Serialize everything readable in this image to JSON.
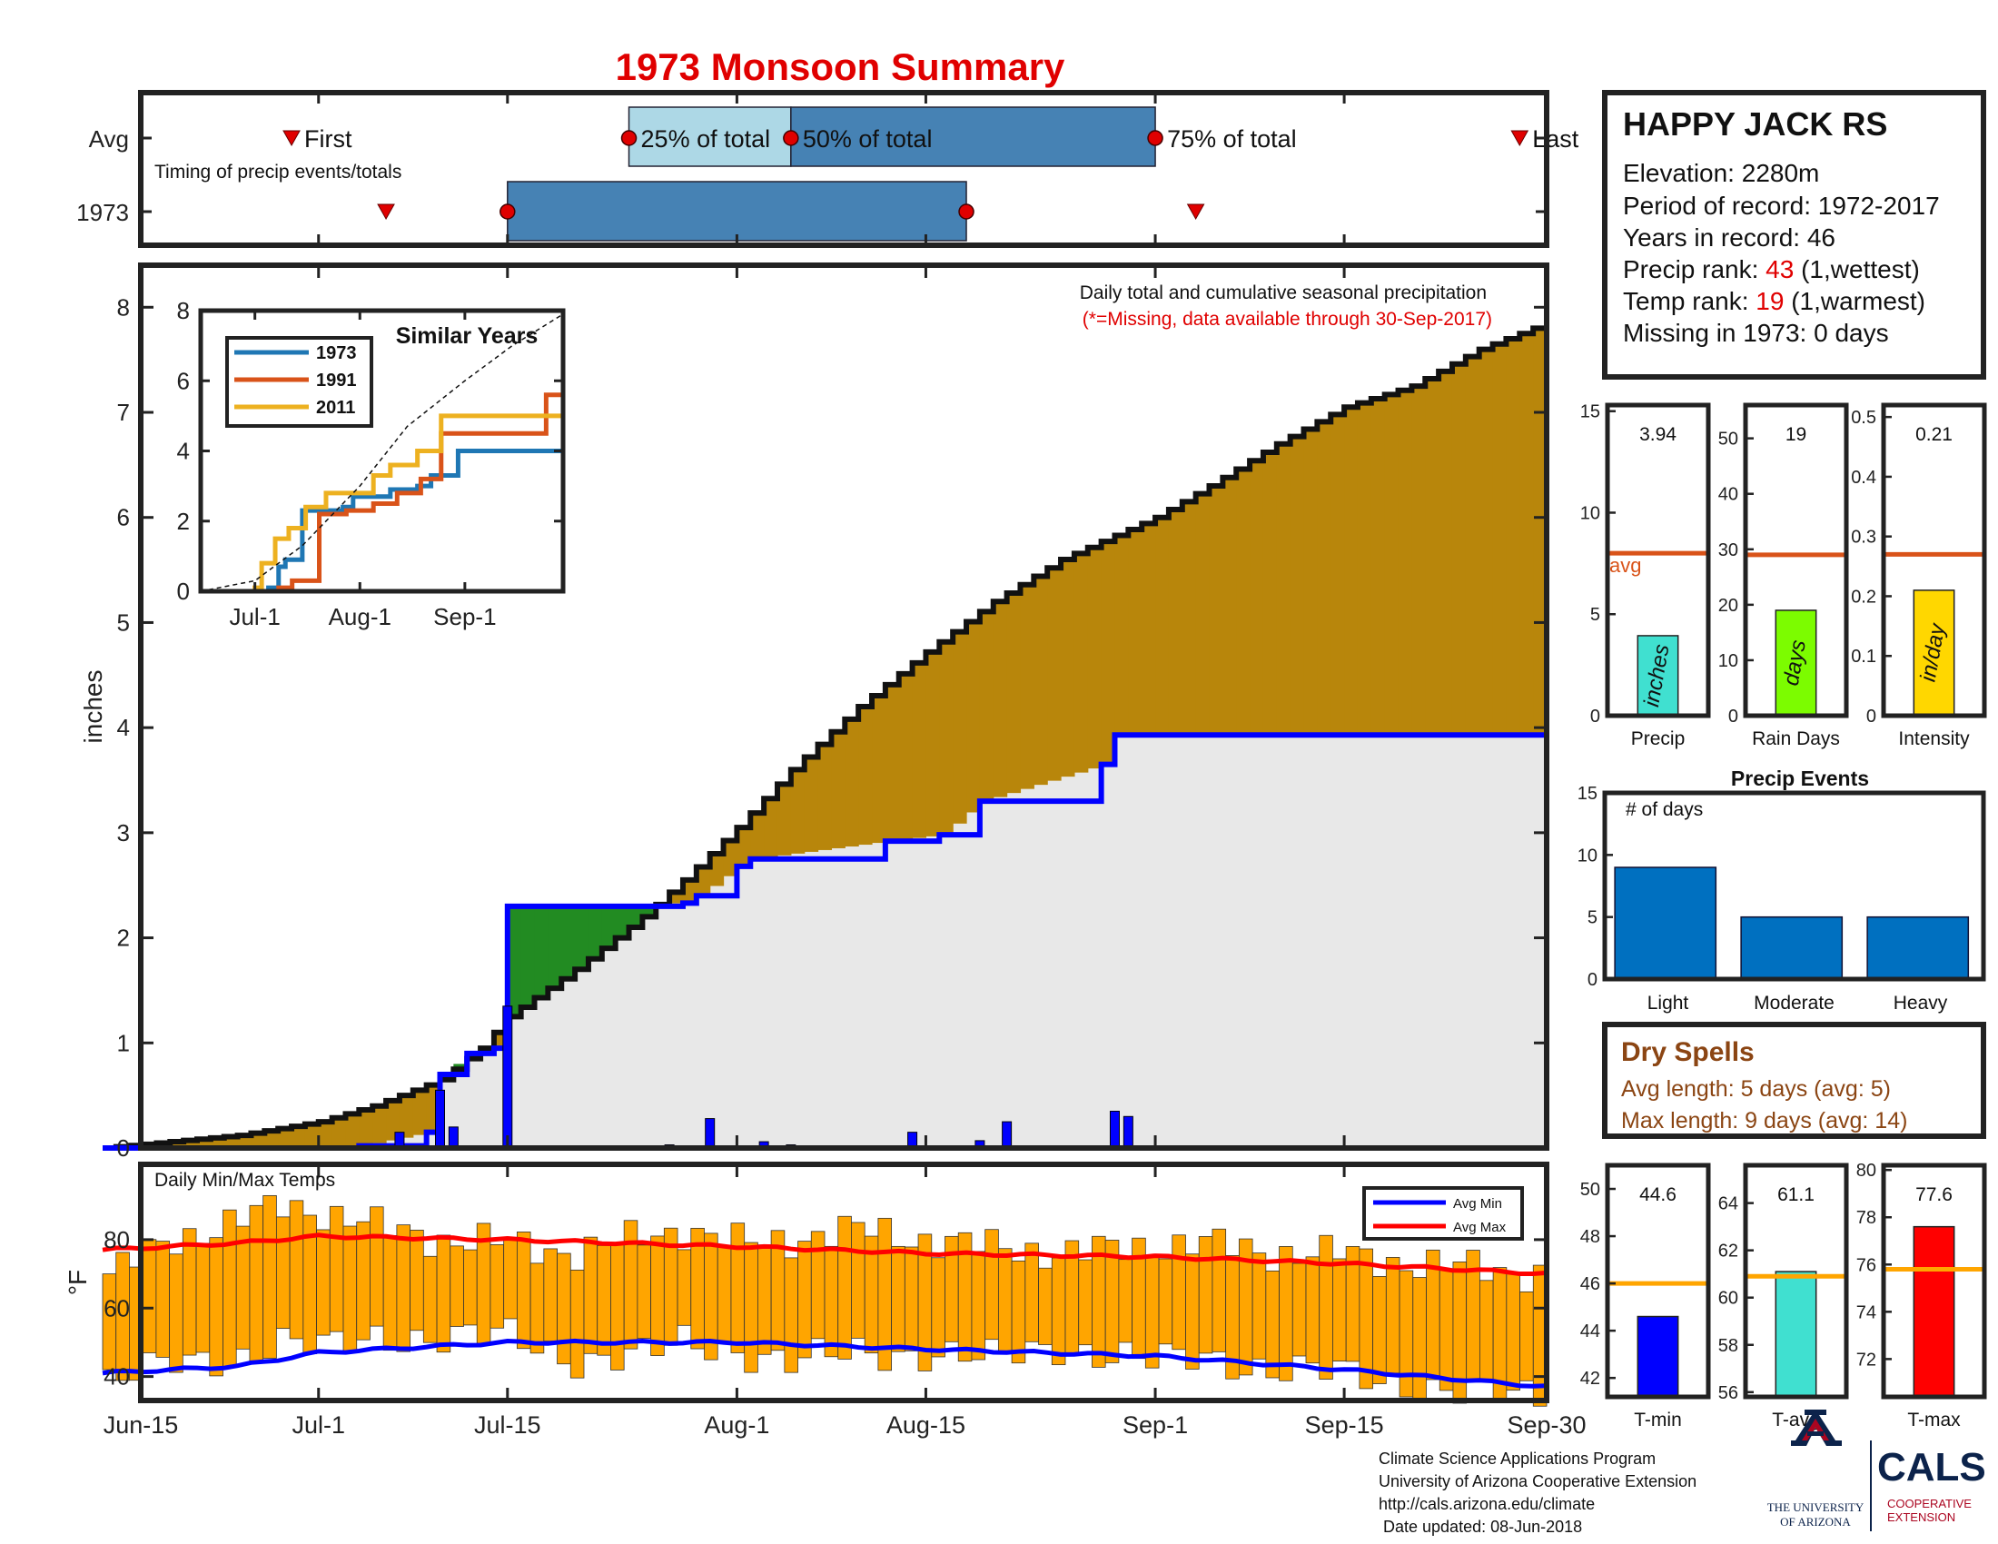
{
  "title": "1973 Monsoon Summary",
  "timing": {
    "avg_label": "Avg",
    "year_label": "1973",
    "subtitle": "Timing of precip events/totals",
    "first_label": "First",
    "last_label": "Last",
    "p25_label": "25% of total",
    "p50_label": "50% of total",
    "p75_label": "75% of total",
    "avg_dates": {
      "first": "2000-06-29",
      "p25": "2000-07-24",
      "p50": "2000-08-05",
      "p75": "2000-09-01",
      "last": "2000-09-28"
    },
    "year_dates": {
      "first": "2000-07-06",
      "p25": "2000-07-15",
      "p75": "2000-08-18",
      "last": "2000-09-04"
    }
  },
  "station": {
    "name": "HAPPY JACK RS",
    "elevation": "Elevation: 2280m",
    "period": "Period of record: 1972-2017",
    "years": "Years in record: 46",
    "precip_rank_prefix": "Precip rank: ",
    "precip_rank_value": "43",
    "precip_rank_suffix": " (1,wettest)",
    "temp_rank_prefix": "Temp rank: ",
    "temp_rank_value": "19",
    "temp_rank_suffix": " (1,warmest)",
    "missing": "Missing in 1973: 0 days"
  },
  "precip_panel": {
    "note": "Daily total and cumulative seasonal precipitation",
    "missing_note": "(*=Missing, data available through 30-Sep-2017)",
    "ylabel": "inches",
    "colors": {
      "climo": "#B8860B",
      "deficit": "#E8E8E8",
      "surplus": "#228B22",
      "observed": "#0000FF"
    }
  },
  "similar_years": {
    "title": "Similar Years",
    "legend": [
      {
        "label": "1973",
        "color": "#1F77B4"
      },
      {
        "label": "1991",
        "color": "#D95319"
      },
      {
        "label": "2011",
        "color": "#EDB120"
      }
    ],
    "xticks": [
      "Jul-1",
      "Aug-1",
      "Sep-1"
    ]
  },
  "temps": {
    "label": "Daily Min/Max Temps",
    "ylabel": "°F",
    "legend_min": "Avg Min",
    "legend_max": "Avg Max"
  },
  "xaxis": {
    "ticks": [
      "Jun-15",
      "Jul-1",
      "Jul-15",
      "Aug-1",
      "Aug-15",
      "Sep-1",
      "Sep-15",
      "Sep-30"
    ]
  },
  "summary_bars": {
    "avg_label": "avg",
    "precip": {
      "label": "Precip",
      "value": 3.94,
      "display": "3.94",
      "avg": 8.0,
      "unit": "inches",
      "color": "#40E0D0",
      "ylim": [
        0,
        15.3
      ],
      "ticks": [
        "0",
        "5",
        "10",
        "15"
      ]
    },
    "rain_days": {
      "label": "Rain Days",
      "value": 19,
      "display": "19",
      "avg": 29,
      "unit": "days",
      "color": "#7CFC00",
      "ylim": [
        0,
        56
      ],
      "ticks": [
        "0",
        "10",
        "20",
        "30",
        "40",
        "50"
      ]
    },
    "intensity": {
      "label": "Intensity",
      "value": 0.21,
      "display": "0.21",
      "avg": 0.27,
      "unit": "in/day",
      "color": "#FFD700",
      "ylim": [
        0,
        0.52
      ],
      "ticks": [
        "0",
        "0.1",
        "0.2",
        "0.3",
        "0.4",
        "0.5"
      ]
    }
  },
  "precip_events": {
    "title": "Precip Events",
    "ylabel": "# of days",
    "categories": [
      "Light",
      "Moderate",
      "Heavy"
    ],
    "values": [
      9,
      5,
      5
    ],
    "ylim": [
      0,
      15
    ],
    "color": "#0070C0"
  },
  "dry_spells": {
    "title": "Dry Spells",
    "avg_length": "Avg length: 5 days (avg: 5)",
    "max_length": "Max length: 9 days (avg: 14)"
  },
  "temp_bars": {
    "tmin": {
      "label": "T-min",
      "value": 44.6,
      "display": "44.6",
      "avg": 46.0,
      "color": "#0000FF",
      "ylim": [
        41.2,
        51
      ],
      "ticks": [
        "42",
        "44",
        "46",
        "48",
        "50"
      ]
    },
    "tavg": {
      "label": "T-avg",
      "value": 61.1,
      "display": "61.1",
      "avg": 60.9,
      "color": "#40E0D0",
      "ylim": [
        55.8,
        65.6
      ],
      "ticks": [
        "56",
        "58",
        "60",
        "62",
        "64"
      ]
    },
    "tmax": {
      "label": "T-max",
      "value": 77.6,
      "display": "77.6",
      "avg": 75.8,
      "color": "#FF0000",
      "ylim": [
        70.4,
        80.2
      ],
      "ticks": [
        "72",
        "74",
        "76",
        "78",
        "80"
      ]
    }
  },
  "footer": {
    "line1": "Climate Science Applications Program",
    "line2": "University of Arizona Cooperative Extension",
    "line3": "http://cals.arizona.edu/climate",
    "line4": " Date updated: 08-Jun-2018",
    "ua_line1": "THE UNIVERSITY",
    "ua_line2": "OF ARIZONA",
    "cals": "CALS",
    "cals_sub1": "COOPERATIVE",
    "cals_sub2": "EXTENSION"
  },
  "chart_data": [
    {
      "type": "area",
      "title": "Daily total and cumulative seasonal precipitation",
      "ylabel": "inches",
      "x_range": [
        "2000-06-15",
        "2000-09-30"
      ],
      "ylim": [
        0,
        8.4
      ],
      "yticks": [
        0,
        1,
        2,
        3,
        4,
        5,
        6,
        7,
        8
      ],
      "climatology_cumulative": {
        "name": "average cumulative",
        "x": [
          "2000-06-15",
          "2000-06-25",
          "2000-07-01",
          "2000-07-05",
          "2000-07-10",
          "2000-07-13",
          "2000-07-15",
          "2000-07-20",
          "2000-07-25",
          "2000-07-28",
          "2000-08-01",
          "2000-08-05",
          "2000-08-10",
          "2000-08-15",
          "2000-08-20",
          "2000-08-25",
          "2000-09-01",
          "2000-09-05",
          "2000-09-10",
          "2000-09-15",
          "2000-09-20",
          "2000-09-25",
          "2000-09-30"
        ],
        "y": [
          0,
          0.12,
          0.25,
          0.4,
          0.65,
          0.95,
          1.25,
          1.7,
          2.2,
          2.55,
          3.05,
          3.6,
          4.2,
          4.72,
          5.2,
          5.6,
          6.0,
          6.3,
          6.7,
          7.05,
          7.25,
          7.6,
          7.85
        ]
      },
      "observed_cumulative": {
        "name": "1973 cumulative",
        "x": [
          "2000-06-15",
          "2000-07-04",
          "2000-07-09",
          "2000-07-10",
          "2000-07-12",
          "2000-07-14",
          "2000-07-15",
          "2000-07-28",
          "2000-07-29",
          "2000-08-01",
          "2000-08-02",
          "2000-08-12",
          "2000-08-16",
          "2000-08-19",
          "2000-08-28",
          "2000-08-29",
          "2000-09-30"
        ],
        "y": [
          0,
          0.02,
          0.15,
          0.7,
          0.9,
          0.95,
          2.3,
          2.33,
          2.4,
          2.68,
          2.75,
          2.92,
          2.98,
          3.3,
          3.65,
          3.93,
          3.94
        ]
      },
      "daily_precip": {
        "name": "1973 daily",
        "x": [
          "2000-07-07",
          "2000-07-10",
          "2000-07-11",
          "2000-07-15",
          "2000-07-27",
          "2000-07-30",
          "2000-08-03",
          "2000-08-05",
          "2000-08-14",
          "2000-08-19",
          "2000-08-21",
          "2000-08-29",
          "2000-08-30"
        ],
        "y": [
          0.15,
          0.55,
          0.2,
          1.35,
          0.03,
          0.28,
          0.06,
          0.03,
          0.15,
          0.07,
          0.25,
          0.35,
          0.3
        ]
      }
    },
    {
      "type": "line",
      "title": "Similar Years",
      "x_range": [
        "2000-06-15",
        "2000-09-30"
      ],
      "xticks": [
        "Jul-1",
        "Aug-1",
        "Sep-1"
      ],
      "ylim": [
        0,
        8
      ],
      "yticks": [
        0,
        2,
        4,
        6,
        8
      ],
      "series": [
        {
          "name": "1973",
          "x": [
            "2000-06-15",
            "2000-07-05",
            "2000-07-08",
            "2000-07-10",
            "2000-07-15",
            "2000-07-27",
            "2000-07-30",
            "2000-08-10",
            "2000-08-18",
            "2000-08-22",
            "2000-08-30",
            "2000-09-30"
          ],
          "y": [
            0,
            0.1,
            0.7,
            0.9,
            2.3,
            2.4,
            2.7,
            2.9,
            3.0,
            3.3,
            4.0,
            4.0
          ]
        },
        {
          "name": "1991",
          "x": [
            "2000-06-15",
            "2000-07-08",
            "2000-07-12",
            "2000-07-16",
            "2000-07-20",
            "2000-07-28",
            "2000-08-05",
            "2000-08-12",
            "2000-08-19",
            "2000-08-25",
            "2000-09-25",
            "2000-09-30"
          ],
          "y": [
            0,
            0.1,
            0.3,
            0.3,
            2.2,
            2.3,
            2.5,
            2.8,
            3.2,
            4.5,
            5.6,
            6.3
          ]
        },
        {
          "name": "2011",
          "x": [
            "2000-06-15",
            "2000-07-01",
            "2000-07-03",
            "2000-07-07",
            "2000-07-11",
            "2000-07-16",
            "2000-07-22",
            "2000-08-05",
            "2000-08-10",
            "2000-08-18",
            "2000-08-25",
            "2000-09-30"
          ],
          "y": [
            0,
            0.1,
            0.8,
            1.5,
            1.8,
            2.4,
            2.8,
            3.3,
            3.6,
            4.0,
            5.0,
            5.3
          ]
        },
        {
          "name": "average",
          "x": [
            "2000-06-15",
            "2000-07-01",
            "2000-07-15",
            "2000-08-01",
            "2000-08-15",
            "2000-09-01",
            "2000-09-15",
            "2000-09-30"
          ],
          "y": [
            0,
            0.3,
            1.3,
            3.0,
            4.7,
            6.0,
            7.0,
            7.9
          ]
        }
      ]
    },
    {
      "type": "bar",
      "title": "Daily Min/Max Temps",
      "ylabel": "°F",
      "x_range": [
        "2000-06-15",
        "2000-09-30"
      ],
      "ylim": [
        33,
        102
      ],
      "yticks": [
        40,
        60,
        80
      ],
      "series": [
        {
          "name": "Avg Max",
          "x": [
            "2000-06-15",
            "2000-06-25",
            "2000-07-01",
            "2000-07-15",
            "2000-08-01",
            "2000-08-15",
            "2000-09-01",
            "2000-09-15",
            "2000-09-30"
          ],
          "y": [
            77,
            79,
            81,
            80,
            78,
            76,
            75,
            73,
            70
          ]
        },
        {
          "name": "Avg Min",
          "x": [
            "2000-06-15",
            "2000-06-25",
            "2000-07-01",
            "2000-07-15",
            "2000-08-01",
            "2000-08-15",
            "2000-09-01",
            "2000-09-15",
            "2000-09-30"
          ],
          "y": [
            41,
            43,
            47,
            50,
            50,
            48,
            46,
            42,
            37
          ]
        },
        {
          "name": "daily max",
          "x": [
            "2000-06-15",
            "2000-06-20",
            "2000-06-25",
            "2000-06-28",
            "2000-07-01",
            "2000-07-05",
            "2000-07-10",
            "2000-07-15",
            "2000-07-20",
            "2000-07-25",
            "2000-07-28",
            "2000-08-01",
            "2000-08-05",
            "2000-08-10",
            "2000-08-15",
            "2000-08-20",
            "2000-08-25",
            "2000-09-01",
            "2000-09-05",
            "2000-09-10",
            "2000-09-15",
            "2000-09-20",
            "2000-09-25",
            "2000-09-30"
          ],
          "y": [
            70,
            80,
            86,
            90,
            88,
            84,
            80,
            79,
            76,
            81,
            83,
            79,
            80,
            83,
            80,
            78,
            76,
            78,
            79,
            76,
            76,
            73,
            72,
            70
          ]
        },
        {
          "name": "daily min",
          "x": [
            "2000-06-15",
            "2000-06-20",
            "2000-06-25",
            "2000-06-28",
            "2000-07-01",
            "2000-07-05",
            "2000-07-10",
            "2000-07-15",
            "2000-07-20",
            "2000-07-25",
            "2000-07-28",
            "2000-08-01",
            "2000-08-05",
            "2000-08-10",
            "2000-08-15",
            "2000-08-20",
            "2000-08-25",
            "2000-09-01",
            "2000-09-05",
            "2000-09-10",
            "2000-09-15",
            "2000-09-20",
            "2000-09-25",
            "2000-09-30"
          ],
          "y": [
            38,
            44,
            46,
            50,
            48,
            52,
            51,
            52,
            45,
            46,
            50,
            48,
            44,
            47,
            47,
            45,
            49,
            44,
            46,
            42,
            41,
            38,
            35,
            34
          ]
        }
      ]
    }
  ]
}
